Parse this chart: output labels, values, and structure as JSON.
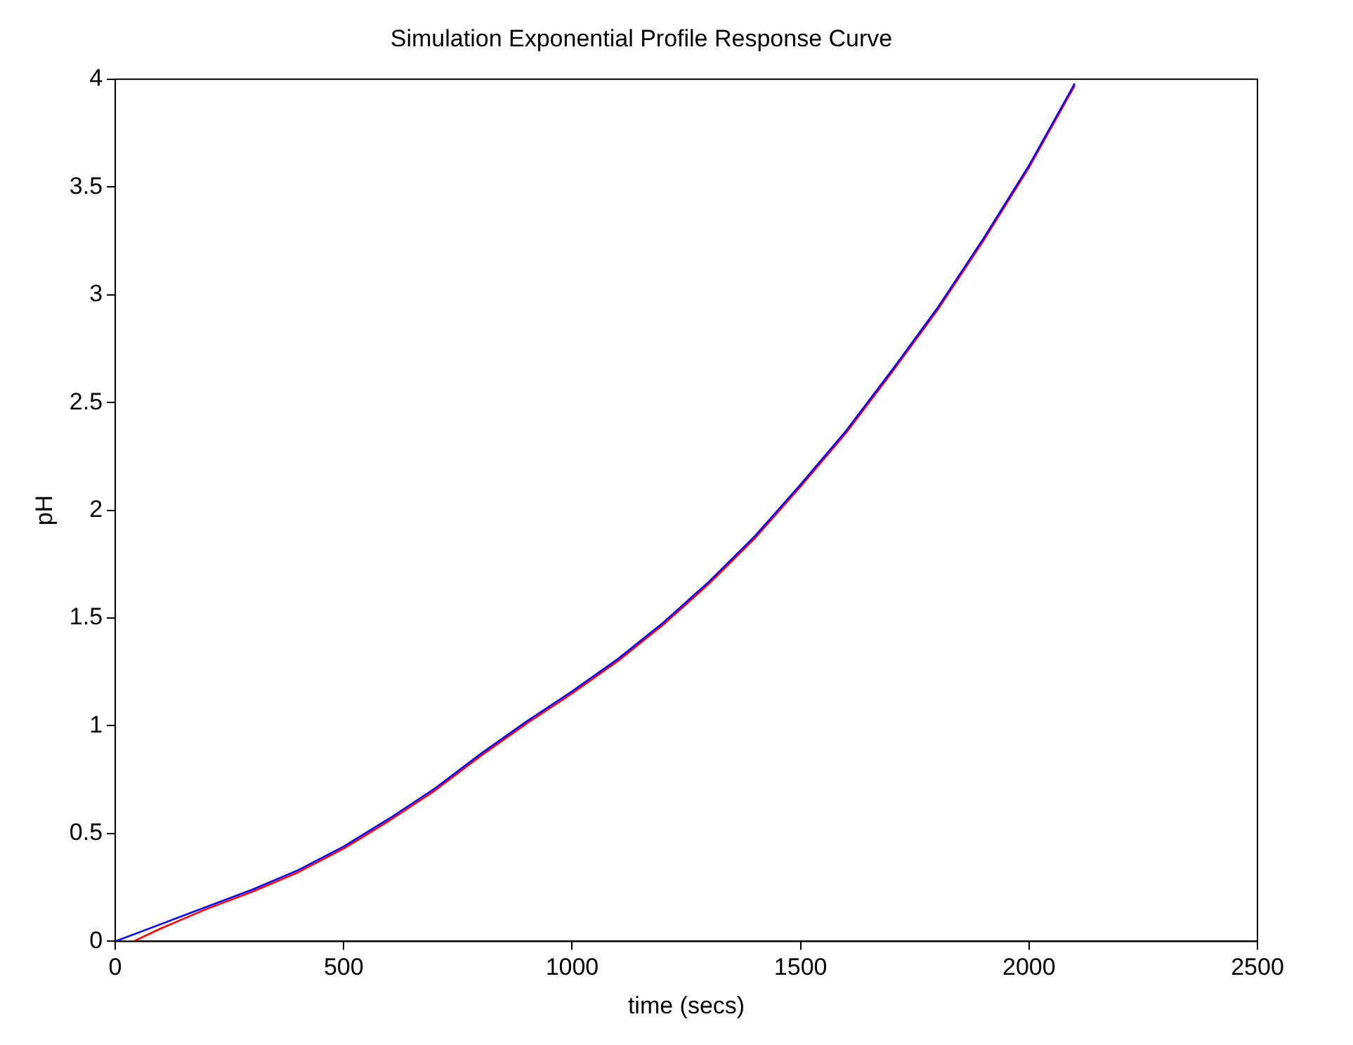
{
  "chart_data": {
    "type": "line",
    "title": "Simulation Exponential Profile Response Curve",
    "xlabel": "time (secs)",
    "ylabel": "pH",
    "xlim": [
      0,
      2500
    ],
    "ylim": [
      0,
      4
    ],
    "xticks": [
      0,
      500,
      1000,
      1500,
      2000,
      2500
    ],
    "yticks": [
      0,
      0.5,
      1,
      1.5,
      2,
      2.5,
      3,
      3.5,
      4
    ],
    "grid": false,
    "legend": false,
    "marker": "none",
    "line_style": "solid",
    "series": [
      {
        "color": "#0000ff",
        "x": [
          0,
          100,
          200,
          300,
          400,
          500,
          600,
          700,
          800,
          900,
          1000,
          1100,
          1200,
          1300,
          1400,
          1500,
          1600,
          1700,
          1800,
          1900,
          2000,
          2100
        ],
        "values": [
          0,
          0.08,
          0.16,
          0.24,
          0.33,
          0.44,
          0.57,
          0.71,
          0.87,
          1.02,
          1.16,
          1.31,
          1.48,
          1.67,
          1.88,
          2.12,
          2.37,
          2.65,
          2.94,
          3.26,
          3.6,
          3.98
        ]
      },
      {
        "color": "#ff0000",
        "x": [
          0,
          40,
          100,
          200,
          300,
          400,
          500,
          600,
          700,
          800,
          900,
          1000,
          1100,
          1200,
          1300,
          1400,
          1500,
          1600,
          1700,
          1800,
          1900,
          2000,
          2100
        ],
        "values": [
          0,
          0,
          0.06,
          0.15,
          0.23,
          0.32,
          0.43,
          0.56,
          0.7,
          0.86,
          1.01,
          1.15,
          1.3,
          1.47,
          1.66,
          1.87,
          2.11,
          2.36,
          2.64,
          2.93,
          3.25,
          3.59,
          3.97
        ]
      }
    ]
  }
}
